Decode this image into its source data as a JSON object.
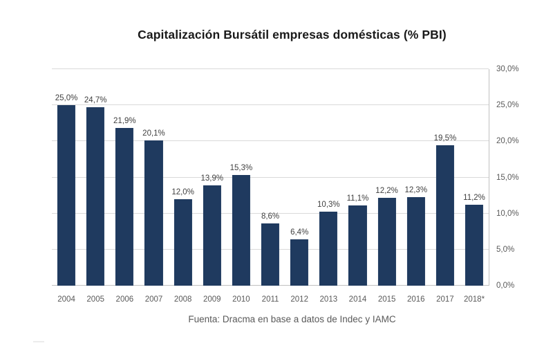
{
  "title": "Capitalización Bursátil empresas domésticas (% PBI)",
  "source": "Fuenta: Dracma en base a datos de Indec y IAMC",
  "colors": {
    "bar": "#1F3A5F",
    "gridline": "#D9D9D9",
    "axis_line": "#BFBFBF",
    "title_text": "#1A1A1A",
    "data_label": "#404040",
    "axis_label": "#595959",
    "source_text": "#595959",
    "background": "#FFFFFF"
  },
  "chart_data": {
    "type": "bar",
    "title": "Capitalización Bursátil empresas domésticas (% PBI)",
    "categories": [
      "2004",
      "2005",
      "2006",
      "2007",
      "2008",
      "2009",
      "2010",
      "2011",
      "2012",
      "2013",
      "2014",
      "2015",
      "2016",
      "2017",
      "2018*"
    ],
    "values": [
      25.0,
      24.7,
      21.9,
      20.1,
      12.0,
      13.9,
      15.3,
      8.6,
      6.4,
      10.3,
      11.1,
      12.2,
      12.3,
      19.5,
      11.2
    ],
    "value_labels": [
      "25,0%",
      "24,7%",
      "21,9%",
      "20,1%",
      "12,0%",
      "13,9%",
      "15,3%",
      "8,6%",
      "6,4%",
      "10,3%",
      "11,1%",
      "12,2%",
      "12,3%",
      "19,5%",
      "11,2%"
    ],
    "xlabel": "",
    "ylabel": "",
    "ylim": [
      0,
      30
    ],
    "yticks": [
      0,
      5,
      10,
      15,
      20,
      25,
      30
    ],
    "ytick_labels": [
      "0,0%",
      "5,0%",
      "10,0%",
      "15,0%",
      "20,0%",
      "25,0%",
      "30,0%"
    ],
    "y_axis_position": "right",
    "grid": "horizontal",
    "legend": "none"
  }
}
